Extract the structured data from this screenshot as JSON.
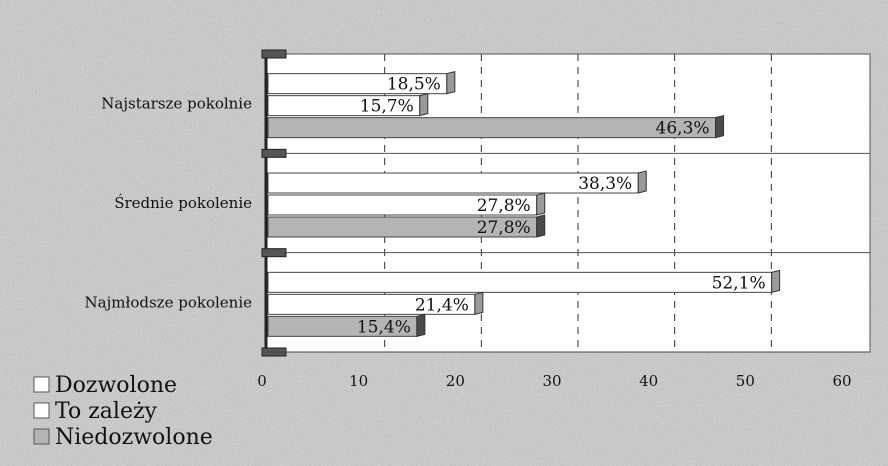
{
  "chart_data": {
    "type": "bar",
    "orientation": "horizontal",
    "categories": [
      "Najstarsze pokolnie",
      "Średnie pokolenie",
      "Najmłodsze pokolenie"
    ],
    "series": [
      {
        "name": "Dozwolone",
        "values": [
          18.5,
          38.3,
          52.1
        ],
        "labels": [
          "18,5%",
          "38,3%",
          "52,1%"
        ]
      },
      {
        "name": "To zależy",
        "values": [
          15.7,
          27.8,
          21.4
        ],
        "labels": [
          "15,7%",
          "27,8%",
          "21,4%"
        ]
      },
      {
        "name": "Niedozwolone",
        "values": [
          46.3,
          27.8,
          15.4
        ],
        "labels": [
          "46,3%",
          "27,8%",
          "15,4%"
        ]
      }
    ],
    "xlim": [
      0,
      60
    ],
    "x_ticks": [
      0,
      10,
      20,
      30,
      40,
      50,
      60
    ],
    "grid": true,
    "legend": "bottom-left",
    "colors": {
      "Dozwolone": "#ffffff",
      "To zależy": "#ffffff",
      "Niedozwolone": "#b4b4b4"
    }
  }
}
